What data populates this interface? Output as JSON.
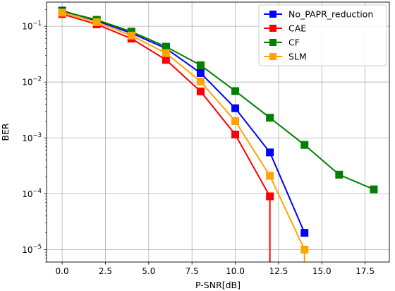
{
  "chart_data": {
    "type": "line",
    "title": "",
    "xlabel": "P-SNR[dB]",
    "ylabel": "BER",
    "xlim": [
      -0.9,
      18.9
    ],
    "ylim": [
      6e-06,
      0.27
    ],
    "yscale": "log",
    "grid": true,
    "legend_position": "top-right",
    "x_ticks": [
      "0.0",
      "2.5",
      "5.0",
      "7.5",
      "10.0",
      "12.5",
      "15.0",
      "17.5"
    ],
    "x_tick_values": [
      0,
      2.5,
      5,
      7.5,
      10,
      12.5,
      15,
      17.5
    ],
    "y_ticks": [
      {
        "value": 0.1,
        "base": "10",
        "exp": "−1"
      },
      {
        "value": 0.01,
        "base": "10",
        "exp": "−2"
      },
      {
        "value": 0.001,
        "base": "10",
        "exp": "−3"
      },
      {
        "value": 0.0001,
        "base": "10",
        "exp": "−4"
      },
      {
        "value": 1e-05,
        "base": "10",
        "exp": "−5"
      }
    ],
    "series": [
      {
        "name": "No_PAPR_reduction",
        "color": "#0000ff",
        "x": [
          0,
          2,
          4,
          6,
          8,
          10,
          12,
          14
        ],
        "y": [
          0.19,
          0.125,
          0.075,
          0.04,
          0.0145,
          0.0034,
          0.00055,
          2e-05
        ]
      },
      {
        "name": "CAE",
        "color": "#ff0000",
        "x": [
          0,
          2,
          4,
          6,
          8,
          10,
          12
        ],
        "y": [
          0.165,
          0.108,
          0.06,
          0.025,
          0.0068,
          0.00115,
          9e-05
        ],
        "drops_to_zero_after": 12
      },
      {
        "name": "CF",
        "color": "#008000",
        "x": [
          0,
          2,
          4,
          6,
          8,
          10,
          12,
          14,
          16,
          18
        ],
        "y": [
          0.185,
          0.13,
          0.08,
          0.043,
          0.02,
          0.0069,
          0.0023,
          0.00075,
          0.00022,
          0.00012
        ]
      },
      {
        "name": "SLM",
        "color": "#ffa500",
        "x": [
          0,
          2,
          4,
          6,
          8,
          10,
          12,
          14
        ],
        "y": [
          0.175,
          0.118,
          0.068,
          0.033,
          0.0102,
          0.002,
          0.00021,
          1e-05
        ],
        "drops_to_zero_after": 14
      }
    ]
  }
}
